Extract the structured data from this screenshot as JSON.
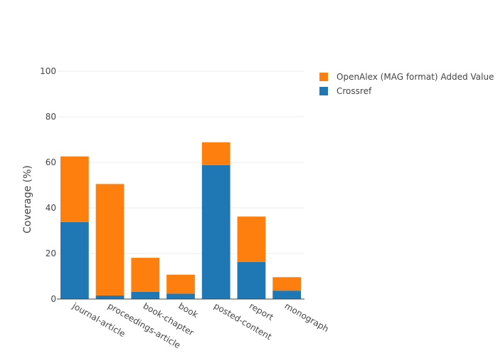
{
  "chart_data": {
    "type": "bar",
    "stacked": true,
    "categories": [
      "journal-article",
      "proceedings-article",
      "book-chapter",
      "book",
      "posted-content",
      "report",
      "monograph"
    ],
    "series": [
      {
        "name": "Crossref",
        "color": "#1f77b4",
        "values": [
          33.8,
          1.6,
          3.2,
          2.4,
          58.8,
          16.3,
          3.7
        ]
      },
      {
        "name": "OpenAlex (MAG format) Added Value",
        "color": "#ff7f0e",
        "values": [
          28.8,
          48.9,
          14.9,
          8.3,
          10.0,
          19.9,
          5.9
        ]
      }
    ],
    "title": "",
    "xlabel": "",
    "ylabel": "Coverage (%)",
    "ylim": [
      0,
      100
    ],
    "yticks": [
      0,
      20,
      40,
      60,
      80,
      100
    ],
    "grid": true,
    "legend_position": "top-right",
    "legend_order": [
      "OpenAlex (MAG format) Added Value",
      "Crossref"
    ]
  }
}
